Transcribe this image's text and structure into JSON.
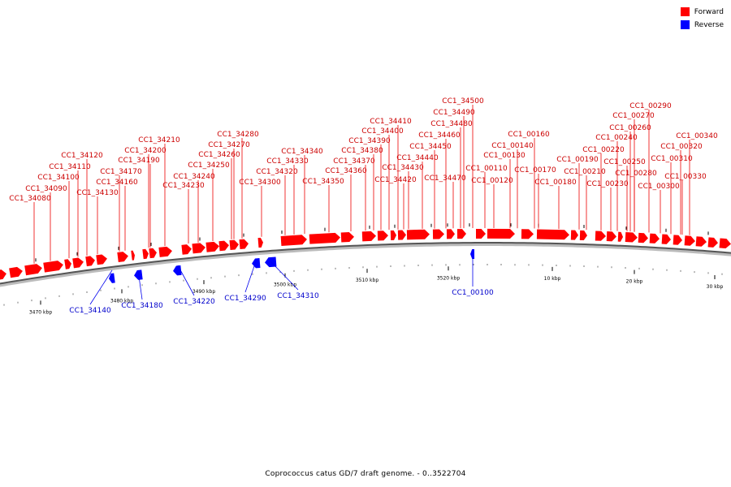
{
  "legend": {
    "forward_label": "Forward",
    "forward_color": "#ff0000",
    "reverse_label": "Reverse",
    "reverse_color": "#0000ff"
  },
  "caption": "Coprococcus catus GD/7 draft genome. - 0..3522704",
  "backbone_color": "#555555",
  "forward_label_color": "#cc0000",
  "reverse_label_color": "#0000cc",
  "scale_labels": [
    "3470 kbp",
    "3480 kbp",
    "3490 kbp",
    "3500 kbp",
    "3510 kbp",
    "3520 kbp",
    "10 kbp",
    "20 kbp",
    "30 kbp"
  ],
  "forward_genes": [
    "CC1_34080",
    "CC1_34090",
    "CC1_34100",
    "CC1_34110",
    "CC1_34120",
    "CC1_34130",
    "CC1_34160",
    "CC1_34170",
    "CC1_34190",
    "CC1_34200",
    "CC1_34210",
    "CC1_34230",
    "CC1_34240",
    "CC1_34250",
    "CC1_34260",
    "CC1_34270",
    "CC1_34280",
    "CC1_34300",
    "CC1_34320",
    "CC1_34330",
    "CC1_34340",
    "CC1_34350",
    "CC1_34360",
    "CC1_34370",
    "CC1_34380",
    "CC1_34390",
    "CC1_34400",
    "CC1_34410",
    "CC1_34420",
    "CC1_34430",
    "CC1_34440",
    "CC1_34450",
    "CC1_34460",
    "CC1_34470",
    "CC1_34480",
    "CC1_34490",
    "CC1_34500",
    "CC1_00110",
    "CC1_00120",
    "CC1_00130",
    "CC1_00140",
    "CC1_00160",
    "CC1_00170",
    "CC1_00180",
    "CC1_00190",
    "CC1_00210",
    "CC1_00220",
    "CC1_00230",
    "CC1_00240",
    "CC1_00250",
    "CC1_00260",
    "CC1_00270",
    "CC1_00280",
    "CC1_00290",
    "CC1_00300",
    "CC1_00310",
    "CC1_00320",
    "CC1_00330",
    "CC1_00340"
  ],
  "reverse_genes": [
    "CC1_34140",
    "CC1_34180",
    "CC1_34220",
    "CC1_34290",
    "CC1_34310",
    "CC1_00100"
  ]
}
